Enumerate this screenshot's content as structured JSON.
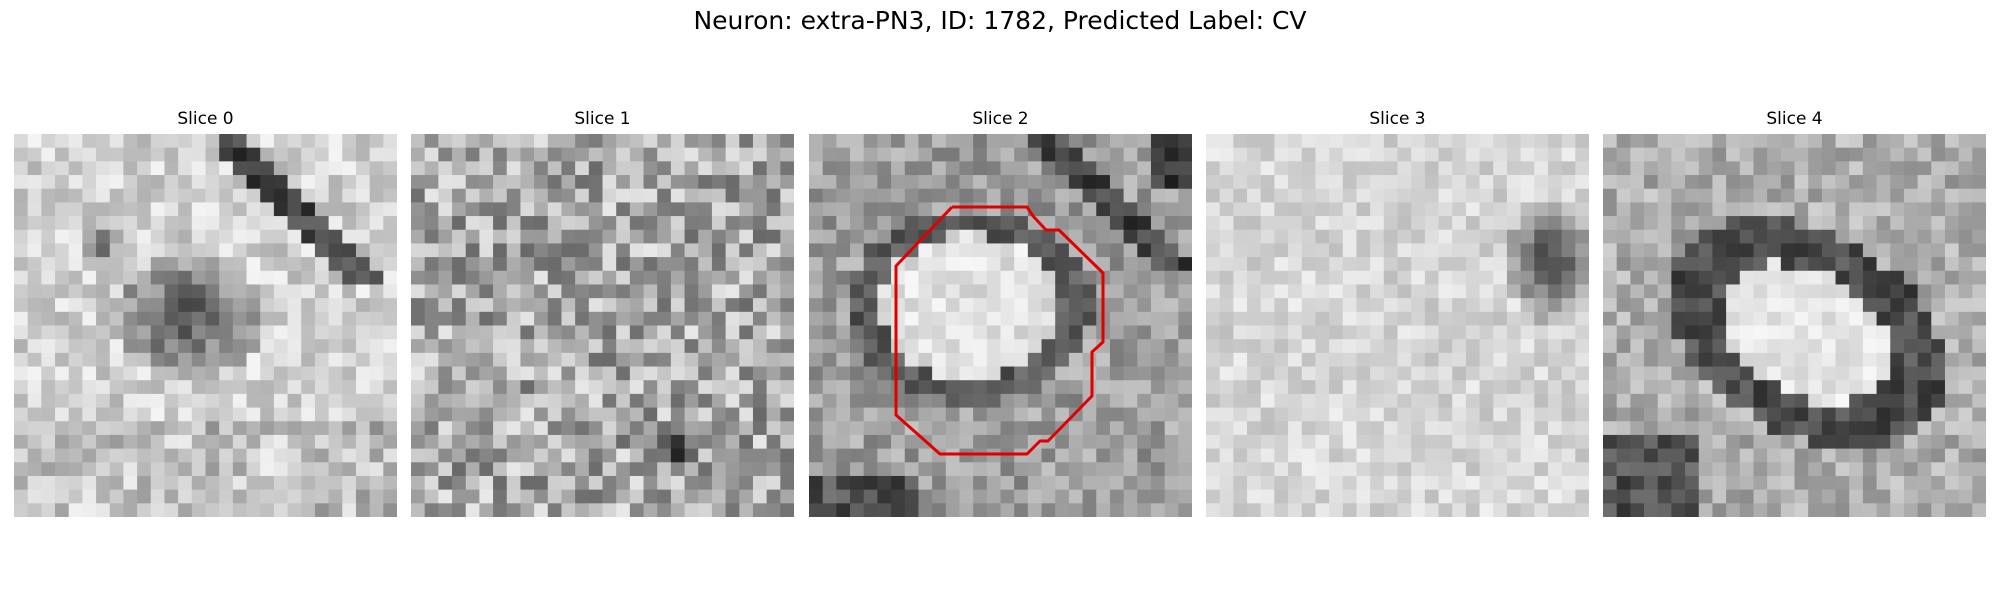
{
  "figure": {
    "title": "Neuron: extra-PN3, ID: 1782, Predicted Label: CV"
  },
  "panels": [
    {
      "title": "Slice 0",
      "image": "grayscale EM patch with dark diagonal membrane at upper right and dark blob in center"
    },
    {
      "title": "Slice 1",
      "image": "grayscale noisy EM patch with scattered dark speckles"
    },
    {
      "title": "Slice 2",
      "image": "grayscale EM patch with dark ring around bright oval",
      "outline": {
        "color": "#e00000",
        "shape": "octagon contour around the bright oval"
      }
    },
    {
      "title": "Slice 3",
      "image": "mostly light grayscale EM patch with dark cluster at upper right"
    },
    {
      "title": "Slice 4",
      "image": "grayscale EM patch with thick dark ring around bright oval"
    }
  ],
  "colors": {
    "outline": "#e00000",
    "background": "#ffffff"
  }
}
